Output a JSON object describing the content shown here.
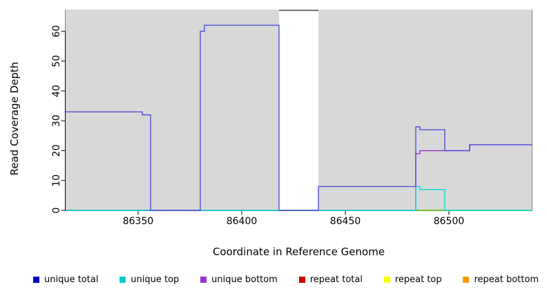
{
  "chart_data": {
    "type": "line",
    "line_style": "step",
    "title": "",
    "xlabel": "Coordinate in Reference Genome",
    "ylabel": "Read Coverage Depth",
    "xlim": [
      86315,
      86540
    ],
    "ylim": [
      0,
      67
    ],
    "xticks": [
      86350,
      86400,
      86450,
      86500
    ],
    "yticks": [
      0,
      10,
      20,
      30,
      40,
      50,
      60
    ],
    "band_color": "#d8d8d8",
    "background_bands": [
      {
        "x1": 86315,
        "x2": 86418,
        "color": "#d8d8d8"
      },
      {
        "x1": 86437,
        "x2": 86540,
        "color": "#d8d8d8"
      }
    ],
    "clipped_peak": {
      "x1": 86418,
      "x2": 86437,
      "color": "#444444"
    },
    "series": [
      {
        "name": "repeat total",
        "color": "#cc0000",
        "steps": [
          [
            86315,
            0
          ]
        ]
      },
      {
        "name": "repeat top",
        "color": "#ffff00",
        "steps": [
          [
            86315,
            0
          ]
        ]
      },
      {
        "name": "repeat bottom",
        "color": "#ff9900",
        "steps": [
          [
            86315,
            0
          ]
        ]
      },
      {
        "name": "zero baseline",
        "color": "#44cc44",
        "steps": [
          [
            86315,
            0
          ]
        ]
      },
      {
        "name": "unique bottom",
        "color": "#9933cc",
        "steps": [
          [
            86315,
            0
          ],
          [
            86484,
            19
          ],
          [
            86486,
            20
          ],
          [
            86510,
            22
          ]
        ]
      },
      {
        "name": "unique top",
        "color": "#00dddd",
        "steps": [
          [
            86315,
            0
          ],
          [
            86484,
            8
          ],
          [
            86486,
            7
          ],
          [
            86498,
            0
          ]
        ]
      },
      {
        "name": "unique total",
        "color": "#4e4ed8",
        "steps": [
          [
            86315,
            33
          ],
          [
            86352,
            32
          ],
          [
            86356,
            0
          ],
          [
            86380,
            60
          ],
          [
            86382,
            62
          ],
          [
            86418,
            0
          ],
          [
            86437,
            8
          ],
          [
            86484,
            28
          ],
          [
            86486,
            27
          ],
          [
            86498,
            20
          ],
          [
            86510,
            22
          ]
        ]
      }
    ],
    "legend": [
      {
        "label": "unique total",
        "color": "#0000cc"
      },
      {
        "label": "unique top",
        "color": "#00cccc"
      },
      {
        "label": "unique bottom",
        "color": "#9933cc"
      },
      {
        "label": "repeat total",
        "color": "#cc0000"
      },
      {
        "label": "repeat top",
        "color": "#ffff00"
      },
      {
        "label": "repeat bottom",
        "color": "#ff9900"
      }
    ]
  }
}
